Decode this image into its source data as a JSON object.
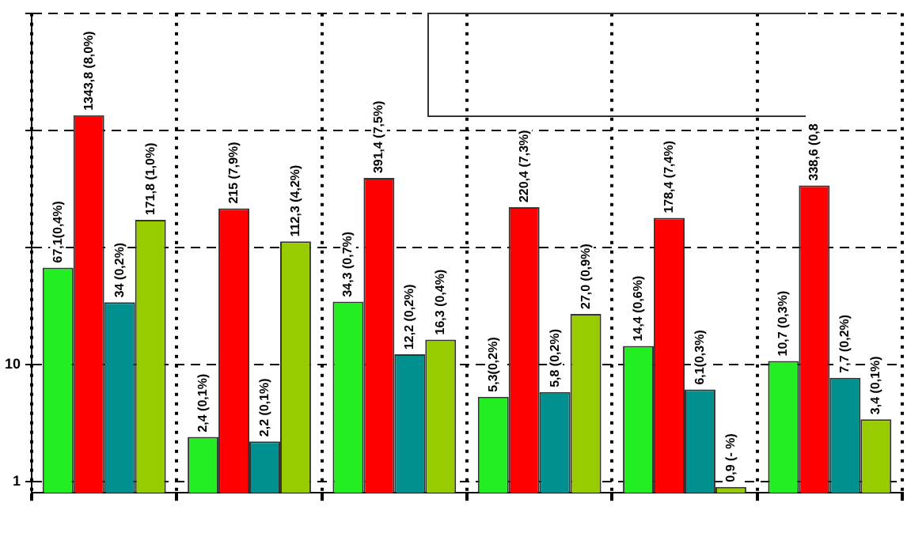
{
  "chart_data": {
    "type": "bar",
    "categories": [
      null,
      null,
      null,
      null,
      null,
      null
    ],
    "log": true,
    "ylim": [
      0.8,
      10000
    ],
    "yticks": [
      1,
      10,
      {
        "value": 100,
        "label": null
      },
      {
        "value": 1000,
        "label": null
      },
      {
        "value": 10000,
        "label": null
      }
    ],
    "grid": true,
    "legend": false,
    "series": [
      {
        "color": "#22ee22",
        "values": [
          67.1,
          2.4,
          34.3,
          5.3,
          14.4,
          10.7
        ],
        "value_labels": [
          "67,1(0,4%)",
          "2,4 (0,1%)",
          "34,3 (0,7%)",
          "5,3(0,2%)",
          "14,4 (0,6%)",
          "10,7 (0,3%)"
        ]
      },
      {
        "color": "#ff0000",
        "values": [
          1343.8,
          215,
          391.4,
          220.4,
          178.4,
          338.6
        ],
        "value_labels": [
          "1343,8 (8,0%)",
          "215 (7,9%)",
          "391,4 (7,5%)",
          "220,4 (7,3%)",
          "178,4 (7,4%)",
          "338,6 (0,8"
        ]
      },
      {
        "color": "#009090",
        "values": [
          34,
          2.2,
          12.2,
          5.8,
          6.1,
          7.7
        ],
        "value_labels": [
          "34 (0,2%)",
          "2,2 (0,1%)",
          "12,2 (0,2%)",
          "5,8 (0,2%)",
          "6,1(0,3%)",
          "7,7 (0,2%)"
        ]
      },
      {
        "color": "#99cc00",
        "values": [
          171.8,
          112.3,
          16.3,
          27.0,
          0.9,
          3.4
        ],
        "value_labels": [
          "171,8 (1,0%)",
          "112,3 (4,2%)",
          "16,3 (0,4%)",
          "27,0 (0,9%)",
          "0,9 (- %)",
          "3,4 (0,1%)"
        ]
      }
    ]
  }
}
